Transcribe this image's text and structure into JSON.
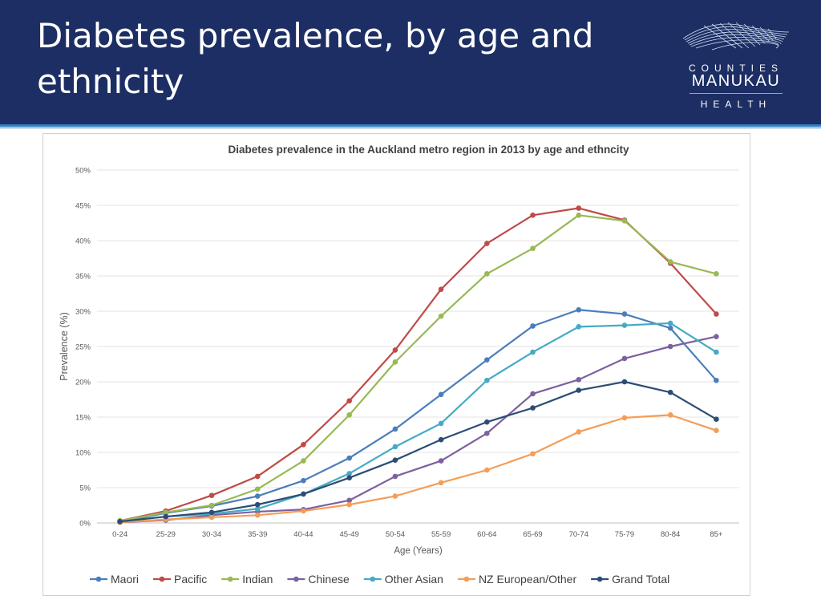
{
  "header": {
    "title": "Diabetes prevalence, by age and ethnicity",
    "logo": {
      "line1": "COUNTIES",
      "line2": "MANUKAU",
      "line3": "HEALTH"
    }
  },
  "colors": {
    "header_bg": "#1c2e63",
    "accent_line": "#2f7fc1"
  },
  "chart_data": {
    "type": "line",
    "title": "Diabetes prevalence in the Auckland metro region in 2013 by age and ethncity",
    "xlabel": "Age (Years)",
    "ylabel": "Prevalence (%)",
    "ylim": [
      0,
      50
    ],
    "yticks": [
      0,
      5,
      10,
      15,
      20,
      25,
      30,
      35,
      40,
      45,
      50
    ],
    "ytick_labels": [
      "0%",
      "5%",
      "10%",
      "15%",
      "20%",
      "25%",
      "30%",
      "35%",
      "40%",
      "45%",
      "50%"
    ],
    "grid": true,
    "legend_position": "bottom",
    "categories": [
      "0-24",
      "25-29",
      "30-34",
      "35-39",
      "40-44",
      "45-49",
      "50-54",
      "55-59",
      "60-64",
      "65-69",
      "70-74",
      "75-79",
      "80-84",
      "85+"
    ],
    "series": [
      {
        "name": "Maori",
        "color": "#4a7ebb",
        "values": [
          0.2,
          1.4,
          2.4,
          3.8,
          6.0,
          9.2,
          13.3,
          18.2,
          23.1,
          27.9,
          30.2,
          29.6,
          27.6,
          20.2
        ]
      },
      {
        "name": "Pacific",
        "color": "#be4b48",
        "values": [
          0.3,
          1.7,
          3.9,
          6.6,
          11.1,
          17.3,
          24.5,
          33.1,
          39.6,
          43.6,
          44.6,
          42.9,
          36.8,
          29.6
        ]
      },
      {
        "name": "Indian",
        "color": "#98b954",
        "values": [
          0.3,
          1.5,
          2.5,
          4.8,
          8.8,
          15.3,
          22.8,
          29.3,
          35.3,
          38.9,
          43.6,
          42.8,
          37.0,
          35.3
        ]
      },
      {
        "name": "Chinese",
        "color": "#7d60a0",
        "values": [
          0.1,
          0.4,
          1.1,
          1.6,
          1.9,
          3.2,
          6.6,
          8.8,
          12.7,
          18.3,
          20.3,
          23.3,
          25.0,
          26.4
        ]
      },
      {
        "name": "Other Asian",
        "color": "#46aac5",
        "values": [
          0.2,
          0.9,
          1.3,
          2.0,
          4.1,
          7.0,
          10.8,
          14.1,
          20.2,
          24.2,
          27.8,
          28.0,
          28.3,
          24.2
        ]
      },
      {
        "name": "NZ European/Other",
        "color": "#f59d56",
        "values": [
          0.1,
          0.5,
          0.8,
          1.1,
          1.7,
          2.6,
          3.8,
          5.7,
          7.5,
          9.8,
          12.9,
          14.9,
          15.3,
          13.1
        ]
      },
      {
        "name": "Grand Total",
        "color": "#2c4d75",
        "values": [
          0.2,
          0.9,
          1.5,
          2.6,
          4.1,
          6.4,
          8.9,
          11.8,
          14.3,
          16.3,
          18.8,
          20.0,
          18.5,
          14.7
        ]
      }
    ]
  }
}
